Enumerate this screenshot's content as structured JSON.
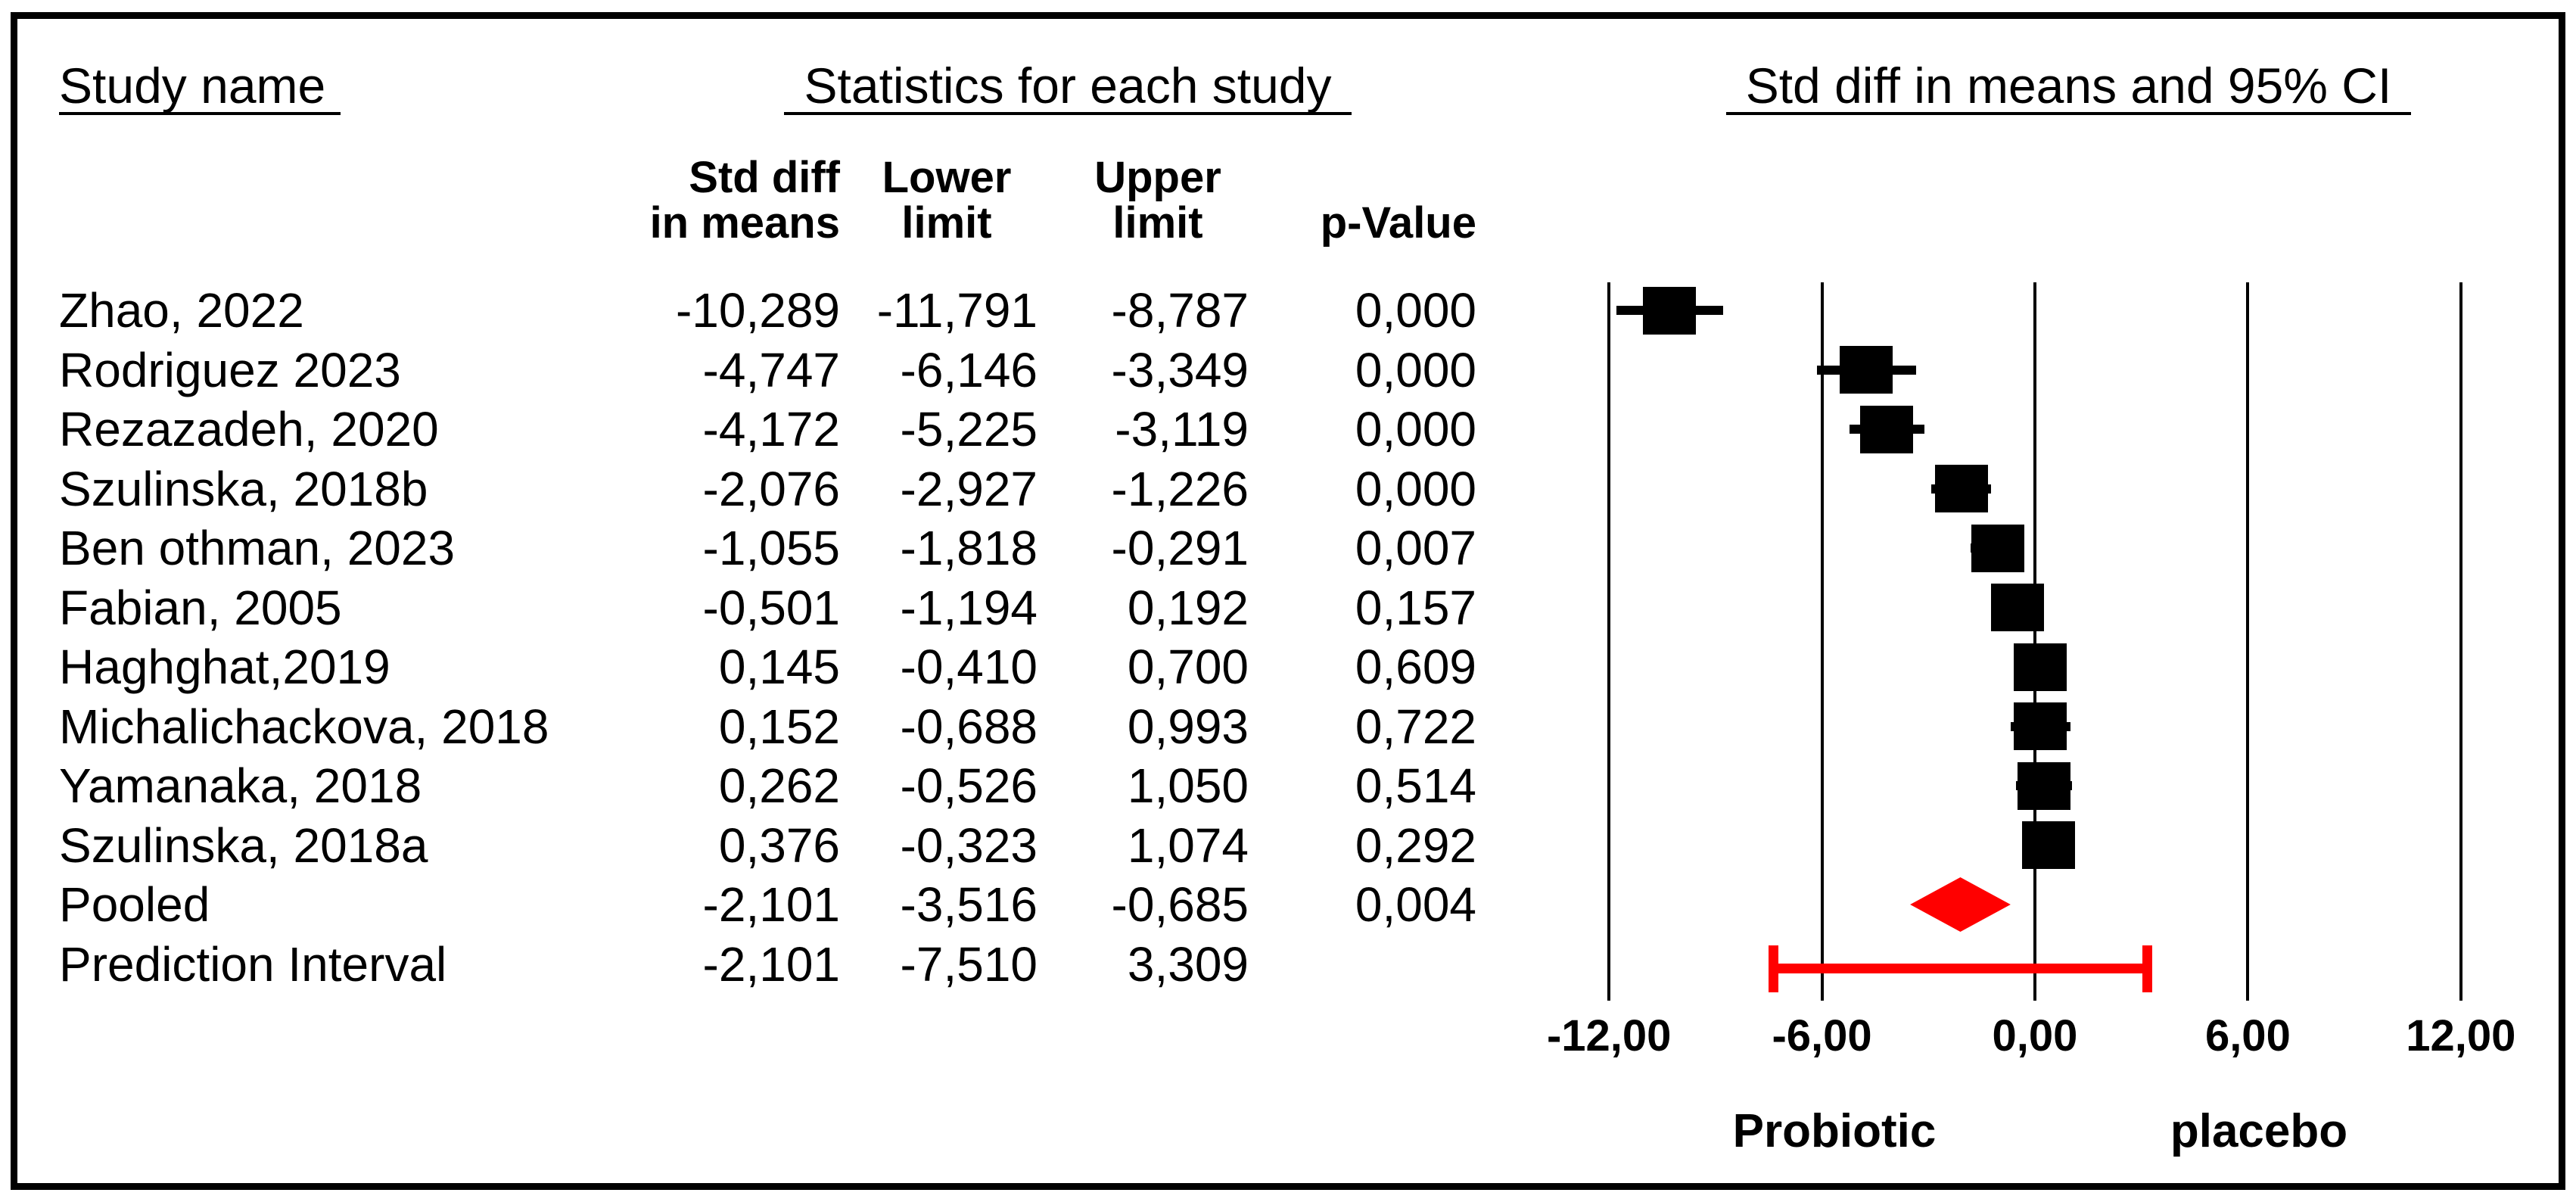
{
  "headers": {
    "study_col": "Study name",
    "stats_col": "Statistics for each study",
    "plot_col": "Std diff in means and 95% CI"
  },
  "stat_columns": {
    "std_diff_line1": "Std diff",
    "std_diff_line2": "in means",
    "lower_line1": "Lower",
    "lower_line2": "limit",
    "upper_line1": "Upper",
    "upper_line2": "limit",
    "p_value": "p-Value"
  },
  "chart_data": {
    "type": "forest",
    "title": "Std diff in means and 95% CI",
    "x_axis": {
      "range": [
        -12,
        12
      ],
      "ticks": [
        -12,
        -6,
        0,
        6,
        12
      ],
      "tick_labels": [
        "-12,00",
        "-6,00",
        "0,00",
        "6,00",
        "12,00"
      ],
      "left_group_label": "Probiotic",
      "right_group_label": "placebo",
      "grid": true
    },
    "studies": [
      {
        "name": "Zhao, 2022",
        "marker": "square",
        "std_diff": -10.289,
        "lower": -11.791,
        "upper": -8.787,
        "std_diff_label": "-10,289",
        "lower_label": "-11,791",
        "upper_label": "-8,787",
        "p_label": "0,000"
      },
      {
        "name": "Rodriguez 2023",
        "marker": "square",
        "std_diff": -4.747,
        "lower": -6.146,
        "upper": -3.349,
        "std_diff_label": "-4,747",
        "lower_label": "-6,146",
        "upper_label": "-3,349",
        "p_label": "0,000"
      },
      {
        "name": "Rezazadeh, 2020",
        "marker": "square",
        "std_diff": -4.172,
        "lower": -5.225,
        "upper": -3.119,
        "std_diff_label": "-4,172",
        "lower_label": "-5,225",
        "upper_label": "-3,119",
        "p_label": "0,000"
      },
      {
        "name": "Szulinska, 2018b",
        "marker": "square",
        "std_diff": -2.076,
        "lower": -2.927,
        "upper": -1.226,
        "std_diff_label": "-2,076",
        "lower_label": "-2,927",
        "upper_label": "-1,226",
        "p_label": "0,000"
      },
      {
        "name": "Ben othman, 2023",
        "marker": "square",
        "std_diff": -1.055,
        "lower": -1.818,
        "upper": -0.291,
        "std_diff_label": "-1,055",
        "lower_label": "-1,818",
        "upper_label": "-0,291",
        "p_label": "0,007"
      },
      {
        "name": "Fabian, 2005",
        "marker": "square",
        "std_diff": -0.501,
        "lower": -1.194,
        "upper": 0.192,
        "std_diff_label": "-0,501",
        "lower_label": "-1,194",
        "upper_label": "0,192",
        "p_label": "0,157"
      },
      {
        "name": "Haghghat,2019",
        "marker": "square",
        "std_diff": 0.145,
        "lower": -0.41,
        "upper": 0.7,
        "std_diff_label": "0,145",
        "lower_label": "-0,410",
        "upper_label": "0,700",
        "p_label": "0,609"
      },
      {
        "name": "Michalichackova, 2018",
        "marker": "square",
        "std_diff": 0.152,
        "lower": -0.688,
        "upper": 0.993,
        "std_diff_label": "0,152",
        "lower_label": "-0,688",
        "upper_label": "0,993",
        "p_label": "0,722"
      },
      {
        "name": "Yamanaka, 2018",
        "marker": "square",
        "std_diff": 0.262,
        "lower": -0.526,
        "upper": 1.05,
        "std_diff_label": "0,262",
        "lower_label": "-0,526",
        "upper_label": "1,050",
        "p_label": "0,514"
      },
      {
        "name": "Szulinska, 2018a",
        "marker": "square",
        "std_diff": 0.376,
        "lower": -0.323,
        "upper": 1.074,
        "std_diff_label": "0,376",
        "lower_label": "-0,323",
        "upper_label": "1,074",
        "p_label": "0,292"
      },
      {
        "name": "Pooled",
        "marker": "diamond",
        "std_diff": -2.101,
        "lower": -3.516,
        "upper": -0.685,
        "std_diff_label": "-2,101",
        "lower_label": "-3,516",
        "upper_label": "-0,685",
        "p_label": "0,004"
      },
      {
        "name": "Prediction Interval",
        "marker": "interval",
        "std_diff": -2.101,
        "lower": -7.51,
        "upper": 3.309,
        "std_diff_label": "-2,101",
        "lower_label": "-7,510",
        "upper_label": "3,309",
        "p_label": ""
      }
    ],
    "colors": {
      "study_marker": "#000000",
      "summary_marker": "#FF0000",
      "gridline": "#000000"
    },
    "legend_position": "none"
  }
}
